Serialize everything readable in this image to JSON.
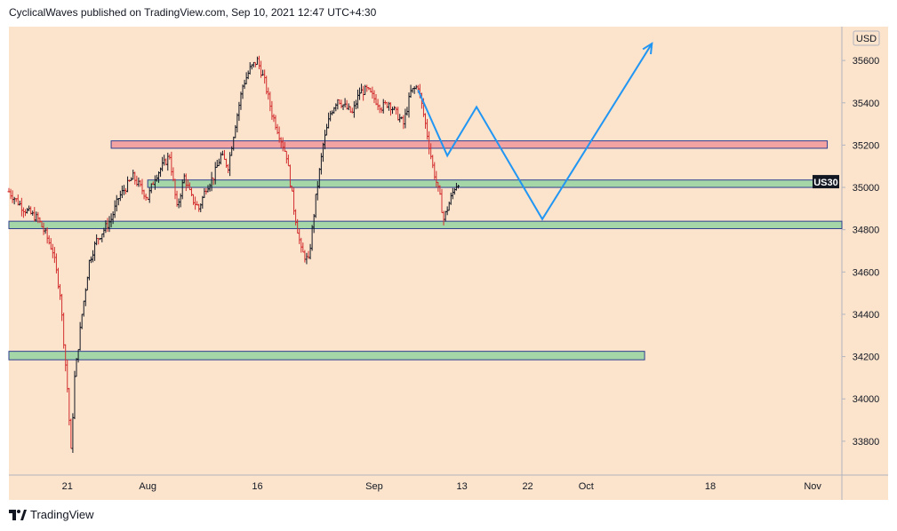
{
  "header": {
    "publisher_text": "CyclicalWaves published on TradingView.com, Sep 10, 2021 12:47 UTC+4:30"
  },
  "footer": {
    "brand": "TradingView",
    "logo_icon": "tradingview-logo-icon"
  },
  "colors": {
    "plot_background": "#fbe3cc",
    "up_bar": "#131722",
    "down_bar": "#d32f2f",
    "green_zone_fill": "#a5d6a7",
    "green_zone_border": "#2e3f8f",
    "red_zone_fill": "#f4a3a3",
    "red_zone_border": "#2e3f8f",
    "projection_line": "#2196f3",
    "symbol_tag_bg": "#131722"
  },
  "chart_data": {
    "type": "candlestick",
    "symbol": "US30",
    "currency": "USD",
    "last_price": 35025,
    "y_axis": {
      "label": "USD",
      "ticks": [
        33800,
        34000,
        34200,
        34400,
        34600,
        34800,
        35000,
        35200,
        35400,
        35600
      ],
      "range": [
        33640,
        35760
      ]
    },
    "x_axis": {
      "ticks": [
        {
          "label": "21",
          "day": 0
        },
        {
          "label": "Aug",
          "day": 11
        },
        {
          "label": "16",
          "day": 26
        },
        {
          "label": "Sep",
          "day": 42
        },
        {
          "label": "13",
          "day": 54
        },
        {
          "label": "22",
          "day": 63
        },
        {
          "label": "Oct",
          "day": 71
        },
        {
          "label": "18",
          "day": 88
        },
        {
          "label": "Nov",
          "day": 102
        }
      ],
      "range": [
        -8,
        106
      ]
    },
    "price_path": [
      [
        -8,
        34980
      ],
      [
        -6,
        34900
      ],
      [
        -4,
        34850
      ],
      [
        -3,
        34780
      ],
      [
        -2,
        34700
      ],
      [
        -1,
        34500
      ],
      [
        0,
        34050
      ],
      [
        0.5,
        33750
      ],
      [
        1,
        34100
      ],
      [
        2,
        34400
      ],
      [
        3,
        34650
      ],
      [
        4,
        34750
      ],
      [
        5,
        34800
      ],
      [
        6,
        34850
      ],
      [
        7,
        34950
      ],
      [
        8,
        35000
      ],
      [
        9,
        35050
      ],
      [
        10,
        35000
      ],
      [
        11,
        34950
      ],
      [
        12,
        35050
      ],
      [
        13,
        35100
      ],
      [
        14,
        35150
      ],
      [
        15,
        34900
      ],
      [
        16,
        35050
      ],
      [
        17,
        34950
      ],
      [
        18,
        34900
      ],
      [
        19,
        35000
      ],
      [
        20,
        35050
      ],
      [
        21,
        35150
      ],
      [
        22,
        35100
      ],
      [
        23,
        35300
      ],
      [
        24,
        35480
      ],
      [
        25,
        35560
      ],
      [
        26,
        35600
      ],
      [
        27,
        35500
      ],
      [
        28,
        35350
      ],
      [
        29,
        35250
      ],
      [
        30,
        35150
      ],
      [
        31,
        34900
      ],
      [
        32,
        34700
      ],
      [
        33,
        34650
      ],
      [
        34,
        34950
      ],
      [
        35,
        35200
      ],
      [
        36,
        35350
      ],
      [
        37,
        35420
      ],
      [
        38,
        35380
      ],
      [
        39,
        35350
      ],
      [
        40,
        35450
      ],
      [
        41,
        35460
      ],
      [
        42,
        35420
      ],
      [
        43,
        35380
      ],
      [
        44,
        35400
      ],
      [
        45,
        35350
      ],
      [
        46,
        35300
      ],
      [
        47,
        35450
      ],
      [
        48,
        35480
      ],
      [
        49,
        35300
      ],
      [
        50,
        35100
      ],
      [
        51,
        34950
      ],
      [
        51.5,
        34850
      ],
      [
        52,
        34900
      ],
      [
        53,
        35000
      ],
      [
        53.5,
        35025
      ]
    ],
    "zones": [
      {
        "name": "red-resistance-zone",
        "top": 35220,
        "bottom": 35185,
        "from_day": 6,
        "to_day": 104
      },
      {
        "name": "green-support-zone-upper",
        "top": 35035,
        "bottom": 35000,
        "from_day": 11,
        "to_day": 104
      },
      {
        "name": "green-support-zone-lower",
        "top": 34840,
        "bottom": 34805,
        "from_day": -8,
        "to_day": 106
      },
      {
        "name": "green-support-zone-bottom",
        "top": 34225,
        "bottom": 34185,
        "from_day": -8,
        "to_day": 79
      }
    ],
    "projection": [
      [
        48,
        35460
      ],
      [
        52,
        35150
      ],
      [
        56,
        35380
      ],
      [
        65,
        34850
      ],
      [
        80,
        35680
      ]
    ]
  }
}
